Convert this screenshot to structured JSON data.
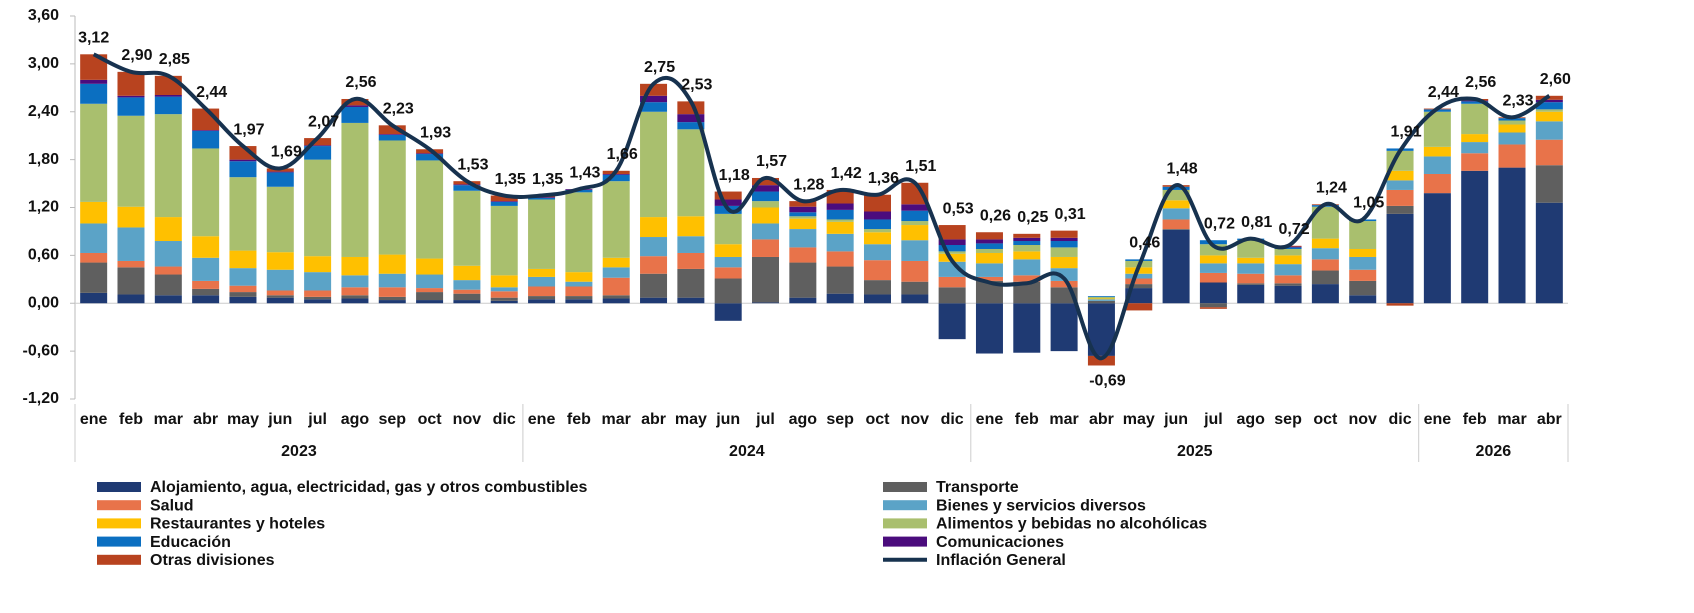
{
  "chart_data": {
    "type": "stacked-bar-line",
    "categories": [
      "ene",
      "feb",
      "mar",
      "abr",
      "may",
      "jun",
      "jul",
      "ago",
      "sep",
      "oct",
      "nov",
      "dic",
      "ene",
      "feb",
      "mar",
      "abr",
      "may",
      "jun",
      "jul",
      "ago",
      "sep",
      "oct",
      "nov",
      "dic",
      "ene",
      "feb",
      "mar",
      "abr",
      "may",
      "jun",
      "jul",
      "ago",
      "sep",
      "oct",
      "nov",
      "dic",
      "ene",
      "feb",
      "mar",
      "abr"
    ],
    "years": [
      "2023",
      "2024",
      "2025",
      "2026"
    ],
    "ylim": [
      -1.2,
      3.6
    ],
    "yticks": [
      {
        "value": -1.2,
        "label": "-1,20"
      },
      {
        "value": -0.6,
        "label": "-0,60"
      },
      {
        "value": 0,
        "label": "0,00"
      },
      {
        "value": 0.6,
        "label": "0,60"
      },
      {
        "value": 1.2,
        "label": "1,20"
      },
      {
        "value": 1.8,
        "label": "1,80"
      },
      {
        "value": 2.4,
        "label": "2,40"
      },
      {
        "value": 3.0,
        "label": "3,00"
      },
      {
        "value": 3.6,
        "label": "3,60"
      }
    ],
    "series": [
      {
        "name": "Alojamiento, agua, electricidad, gas y otros combustibles",
        "color": "#1f3a73",
        "values": [
          0.13,
          0.11,
          0.1,
          0.1,
          0.08,
          0.07,
          0.05,
          0.06,
          0.04,
          0.04,
          0.04,
          0.03,
          0.05,
          0.05,
          0.06,
          0.07,
          0.07,
          -0.22,
          0.01,
          0.07,
          0.12,
          0.11,
          0.11,
          -0.45,
          -0.63,
          -0.62,
          -0.6,
          -0.66,
          0.19,
          0.92,
          0.26,
          0.23,
          0.22,
          0.24,
          0.1,
          1.12,
          1.38,
          1.66,
          1.7,
          1.26
        ]
      },
      {
        "name": "Transporte",
        "color": "#5f5f5f",
        "values": [
          0.38,
          0.34,
          0.26,
          0.08,
          0.06,
          0.03,
          0.03,
          0.04,
          0.04,
          0.1,
          0.08,
          0.04,
          0.04,
          0.04,
          0.04,
          0.3,
          0.36,
          0.31,
          0.57,
          0.44,
          0.34,
          0.18,
          0.16,
          0.2,
          0.28,
          0.27,
          0.2,
          0.03,
          0.05,
          0.01,
          -0.05,
          0.02,
          0.03,
          0.17,
          0.18,
          0.1,
          0.0,
          0.0,
          0.0,
          0.47
        ]
      },
      {
        "name": "Salud",
        "color": "#e8734a",
        "values": [
          0.12,
          0.08,
          0.1,
          0.1,
          0.08,
          0.06,
          0.08,
          0.1,
          0.12,
          0.05,
          0.05,
          0.08,
          0.12,
          0.12,
          0.22,
          0.22,
          0.2,
          0.14,
          0.22,
          0.19,
          0.19,
          0.25,
          0.26,
          0.13,
          0.05,
          0.08,
          0.08,
          0.0,
          0.07,
          0.12,
          0.12,
          0.12,
          0.1,
          0.14,
          0.14,
          0.2,
          0.24,
          0.22,
          0.29,
          0.32
        ]
      },
      {
        "name": "Bienes y servicios diversos",
        "color": "#5ba3c7",
        "values": [
          0.37,
          0.42,
          0.32,
          0.29,
          0.22,
          0.26,
          0.23,
          0.15,
          0.17,
          0.17,
          0.12,
          0.05,
          0.12,
          0.06,
          0.13,
          0.24,
          0.21,
          0.13,
          0.2,
          0.23,
          0.22,
          0.2,
          0.26,
          0.19,
          0.17,
          0.2,
          0.16,
          0.02,
          0.06,
          0.14,
          0.12,
          0.13,
          0.14,
          0.14,
          0.16,
          0.12,
          0.22,
          0.14,
          0.15,
          0.23
        ]
      },
      {
        "name": "Restaurantes y hoteles",
        "color": "#ffc000",
        "values": [
          0.27,
          0.26,
          0.3,
          0.27,
          0.22,
          0.22,
          0.2,
          0.23,
          0.24,
          0.2,
          0.18,
          0.15,
          0.1,
          0.12,
          0.12,
          0.25,
          0.25,
          0.16,
          0.2,
          0.13,
          0.15,
          0.15,
          0.19,
          0.1,
          0.13,
          0.1,
          0.14,
          0.01,
          0.08,
          0.1,
          0.1,
          0.07,
          0.11,
          0.12,
          0.1,
          0.12,
          0.12,
          0.1,
          0.1,
          0.12
        ]
      },
      {
        "name": "Alimentos y bebidas no alcohólicas",
        "color": "#a9bf6e",
        "values": [
          1.23,
          1.14,
          1.29,
          1.1,
          0.92,
          0.82,
          1.21,
          1.68,
          1.43,
          1.23,
          0.94,
          0.87,
          0.87,
          1.0,
          0.96,
          1.32,
          1.09,
          0.38,
          0.08,
          0.03,
          0.03,
          0.04,
          0.05,
          0.03,
          0.05,
          0.08,
          0.12,
          0.02,
          0.08,
          0.13,
          0.14,
          0.22,
          0.08,
          0.4,
          0.35,
          0.25,
          0.44,
          0.38,
          0.05,
          0.03
        ]
      },
      {
        "name": "Educación",
        "color": "#0b6fc1",
        "values": [
          0.25,
          0.23,
          0.22,
          0.22,
          0.2,
          0.18,
          0.17,
          0.2,
          0.07,
          0.08,
          0.07,
          0.05,
          0.02,
          0.03,
          0.08,
          0.12,
          0.09,
          0.1,
          0.12,
          0.05,
          0.12,
          0.12,
          0.13,
          0.08,
          0.07,
          0.05,
          0.08,
          0.01,
          0.02,
          0.04,
          0.05,
          0.02,
          0.02,
          0.02,
          0.02,
          0.03,
          0.03,
          0.03,
          0.03,
          0.09
        ]
      },
      {
        "name": "Comunicaciones",
        "color": "#4b0c7d",
        "values": [
          0.05,
          0.02,
          0.02,
          0.01,
          0.02,
          0.01,
          0.01,
          0.02,
          0.01,
          0.01,
          0.01,
          0.01,
          0.01,
          0.01,
          0.01,
          0.08,
          0.1,
          0.08,
          0.08,
          0.07,
          0.08,
          0.1,
          0.08,
          0.07,
          0.05,
          0.04,
          0.04,
          0.0,
          0.0,
          0.0,
          0.0,
          0.0,
          0.01,
          0.0,
          0.0,
          0.0,
          0.0,
          0.01,
          0.0,
          0.03
        ]
      },
      {
        "name": "Otras divisiones",
        "color": "#b8431f",
        "values": [
          0.32,
          0.3,
          0.24,
          0.27,
          0.17,
          0.04,
          0.09,
          0.08,
          0.11,
          0.05,
          0.04,
          0.07,
          0.02,
          0.0,
          0.04,
          0.15,
          0.16,
          0.1,
          0.09,
          0.07,
          0.17,
          0.21,
          0.27,
          0.18,
          0.09,
          0.05,
          0.09,
          -0.12,
          -0.09,
          0.02,
          -0.02,
          0.0,
          0.01,
          0.01,
          0.0,
          -0.03,
          0.01,
          0.02,
          0.01,
          0.05
        ]
      }
    ],
    "line": {
      "name": "Inflación General",
      "color": "#17324f",
      "values": [
        3.12,
        2.9,
        2.85,
        2.44,
        1.97,
        1.69,
        2.07,
        2.56,
        2.23,
        1.93,
        1.53,
        1.35,
        1.35,
        1.43,
        1.66,
        2.75,
        2.53,
        1.18,
        1.57,
        1.28,
        1.42,
        1.36,
        1.51,
        0.53,
        0.26,
        0.25,
        0.31,
        -0.69,
        0.46,
        1.48,
        0.72,
        0.81,
        0.72,
        1.24,
        1.05,
        1.91,
        2.44,
        2.56,
        2.33,
        2.6
      ],
      "value_labels": [
        "3,12",
        "2,90",
        "2,85",
        "2,44",
        "1,97",
        "1,69",
        "2,07",
        "2,56",
        "2,23",
        "1,93",
        "1,53",
        "1,35",
        "1,35",
        "1,43",
        "1,66",
        "2,75",
        "2,53",
        "1,18",
        "1,57",
        "1,28",
        "1,42",
        "1,36",
        "1,51",
        "0,53",
        "0,26",
        "0,25",
        "0,31",
        "-0,69",
        "0,46",
        "1,48",
        "0,72",
        "0,81",
        "0,72",
        "1,24",
        "1,05",
        "1,91",
        "2,44",
        "2,56",
        "2,33",
        "2,60"
      ]
    }
  }
}
